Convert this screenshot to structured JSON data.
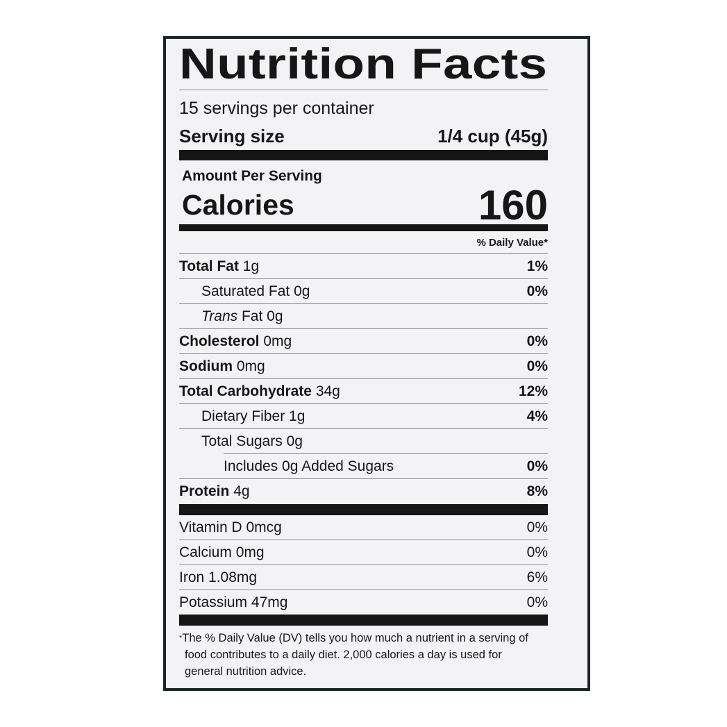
{
  "title": "Nutrition Facts",
  "servings_per_container": "15 servings per container",
  "serving_size": {
    "label": "Serving size",
    "value": "1/4 cup (45g)"
  },
  "amount_per_serving": "Amount Per Serving",
  "calories": {
    "label": "Calories",
    "value": "160"
  },
  "daily_value_header": "% Daily Value*",
  "nutrients": [
    {
      "name": "Total Fat",
      "amount": "1g",
      "dv": "1%"
    },
    {
      "name": "Saturated Fat",
      "amount": "0g",
      "dv": "0%"
    },
    {
      "name": "Trans",
      "suffix": "Fat",
      "amount": "0g",
      "dv": ""
    },
    {
      "name": "Cholesterol",
      "amount": "0mg",
      "dv": "0%"
    },
    {
      "name": "Sodium",
      "amount": "0mg",
      "dv": "0%"
    },
    {
      "name": "Total Carbohydrate",
      "amount": "34g",
      "dv": "12%"
    },
    {
      "name": "Dietary Fiber",
      "amount": "1g",
      "dv": "4%"
    },
    {
      "name": "Total Sugars",
      "amount": "0g",
      "dv": ""
    },
    {
      "name": "Includes 0g Added Sugars",
      "amount": "",
      "dv": "0%"
    },
    {
      "name": "Protein",
      "amount": "4g",
      "dv": "8%"
    }
  ],
  "vitamins": [
    {
      "name": "Vitamin D",
      "amount": "0mcg",
      "dv": "0%"
    },
    {
      "name": "Calcium",
      "amount": "0mg",
      "dv": "0%"
    },
    {
      "name": "Iron",
      "amount": "1.08mg",
      "dv": "6%"
    },
    {
      "name": "Potassium",
      "amount": "47mg",
      "dv": "0%"
    }
  ],
  "footnote": {
    "asterisk": "*",
    "text": "The % Daily Value (DV) tells you how much a nutrient in a serving of food contributes to a daily diet. 2,000 calories a day is used for general nutrition advice."
  }
}
